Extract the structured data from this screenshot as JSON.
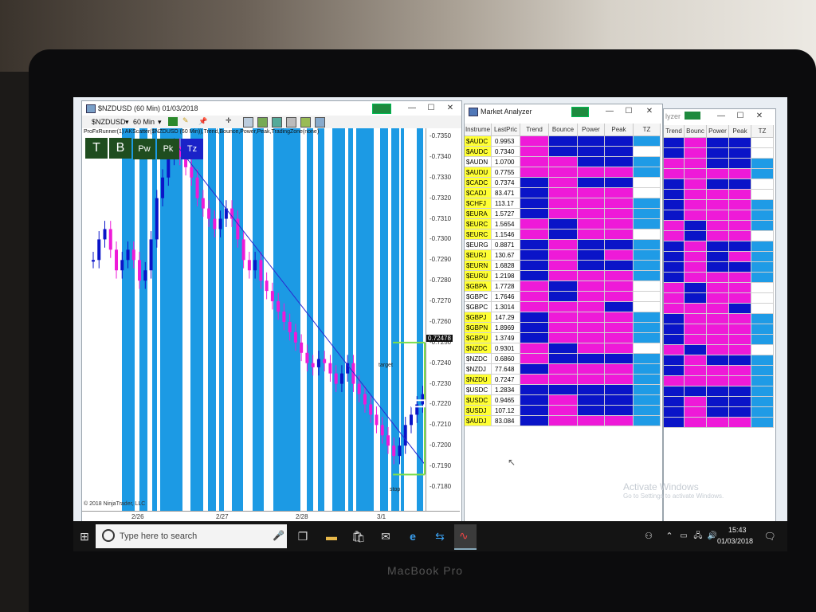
{
  "device": {
    "brand": "MacBook Pro"
  },
  "chart_window": {
    "title": "$NZDUSD (60 Min)  01/03/2018",
    "toolbar": {
      "instrument": "$NZDUSD",
      "interval": "60 Min"
    },
    "indicator_text": "ProFxRunner(1) AKScatter($NZDUSD (60 Min)),Trend,Bounce,Power,Peak,TradingZone(none)",
    "badges": [
      "T",
      "B",
      "Pw",
      "Pk",
      "Tz"
    ],
    "price_labels": [
      "0.7350",
      "0.7340",
      "0.7330",
      "0.7320",
      "0.7310",
      "0.7300",
      "0.7290",
      "0.7280",
      "0.7270",
      "0.7260",
      "0.7250",
      "0.7240",
      "0.7230",
      "0.7220",
      "0.7210",
      "0.7200",
      "0.7190",
      "0.7180"
    ],
    "current_price": "0.72478",
    "date_labels": [
      "2/26",
      "2/27",
      "2/28",
      "3/1"
    ],
    "target_label": "target",
    "stop_label": "stop",
    "copyright": "© 2018 NinjaTrader, LLC"
  },
  "market_analyzer": {
    "title": "Market Analyzer",
    "columns": [
      "Instrume",
      "LastPric",
      "Trend",
      "Bounce",
      "Power",
      "Peak",
      "TZ"
    ],
    "second_columns": [
      "Trend",
      "Bounc",
      "Power",
      "Peak",
      "TZ"
    ],
    "second_title_fragment": "lyzer",
    "rows": [
      {
        "name": "$AUDC",
        "price": "0.9953",
        "hl": true,
        "c": "MNNNL",
        "c2": "NMNNW"
      },
      {
        "name": "$AUDC",
        "price": "0.7340",
        "hl": true,
        "c": "MNNNW",
        "c2": "NMNNW"
      },
      {
        "name": "$AUDN",
        "price": "1.0700",
        "hl": false,
        "c": "MMNNL",
        "c2": "MMNNL"
      },
      {
        "name": "$AUDU",
        "price": "0.7755",
        "hl": true,
        "c": "MMMML",
        "c2": "MMMML"
      },
      {
        "name": "$CADC",
        "price": "0.7374",
        "hl": true,
        "c": "NMNNW",
        "c2": "NMNNW"
      },
      {
        "name": "$CADJ",
        "price": "83.471",
        "hl": true,
        "c": "NMMMW",
        "c2": "NMMMW"
      },
      {
        "name": "$CHFJ",
        "price": "113.17",
        "hl": true,
        "c": "NMMMC",
        "c2": "NMMMC"
      },
      {
        "name": "$EURA",
        "price": "1.5727",
        "hl": true,
        "c": "NMMML",
        "c2": "NMMML"
      },
      {
        "name": "$EURC",
        "price": "1.5654",
        "hl": true,
        "c": "MNMML",
        "c2": "MNMML"
      },
      {
        "name": "$EURC",
        "price": "1.1546",
        "hl": true,
        "c": "MNMMW",
        "c2": "MNMMW"
      },
      {
        "name": "$EURG",
        "price": "0.8871",
        "hl": false,
        "c": "NMNNL",
        "c2": "NMNNL"
      },
      {
        "name": "$EURJ",
        "price": "130.67",
        "hl": true,
        "c": "NMNML",
        "c2": "NMNML"
      },
      {
        "name": "$EURN",
        "price": "1.6828",
        "hl": true,
        "c": "NMNNL",
        "c2": "NMNNL"
      },
      {
        "name": "$EURU",
        "price": "1.2198",
        "hl": true,
        "c": "NMMML",
        "c2": "NMMML"
      },
      {
        "name": "$GBPA",
        "price": "1.7728",
        "hl": true,
        "c": "MNMMW",
        "c2": "MNMMW"
      },
      {
        "name": "$GBPC",
        "price": "1.7646",
        "hl": false,
        "c": "MNMMW",
        "c2": "MNMMW"
      },
      {
        "name": "$GBPC",
        "price": "1.3014",
        "hl": false,
        "c": "MMMNW",
        "c2": "MMMNW"
      },
      {
        "name": "$GBPJ",
        "price": "147.29",
        "hl": true,
        "c": "NMMML",
        "c2": "NMMML"
      },
      {
        "name": "$GBPN",
        "price": "1.8969",
        "hl": true,
        "c": "NMMML",
        "c2": "NMMML"
      },
      {
        "name": "$GBPU",
        "price": "1.3749",
        "hl": true,
        "c": "NMMML",
        "c2": "NMMML"
      },
      {
        "name": "$NZDC",
        "price": "0.9301",
        "hl": true,
        "c": "MNMMW",
        "c2": "MNMMW"
      },
      {
        "name": "$NZDC",
        "price": "0.6860",
        "hl": false,
        "c": "MNNNL",
        "c2": "NMNNL"
      },
      {
        "name": "$NZDJ",
        "price": "77.648",
        "hl": false,
        "c": "NMMML",
        "c2": "NMMML"
      },
      {
        "name": "$NZDU",
        "price": "0.7247",
        "hl": true,
        "c": "MMMML",
        "c2": "MMMML"
      },
      {
        "name": "$USDC",
        "price": "1.2834",
        "hl": false,
        "c": "NNNNL",
        "c2": "NNNNL"
      },
      {
        "name": "$USDC",
        "price": "0.9465",
        "hl": true,
        "c": "NMNNL",
        "c2": "NMNNL"
      },
      {
        "name": "$USDJ",
        "price": "107.12",
        "hl": true,
        "c": "NMNNL",
        "c2": "NMNNL"
      },
      {
        "name": "$AUDJ",
        "price": "83.084",
        "hl": true,
        "c": "NMMML",
        "c2": "NMMML"
      }
    ],
    "watermark_title": "Activate Windows",
    "watermark_sub": "Go to Settings to activate Windows."
  },
  "taskbar": {
    "search_placeholder": "Type here to search",
    "time": "15:43",
    "date": "01/03/2018"
  },
  "colors": {
    "blue": "#0a14c8",
    "magenta": "#ee1ad8",
    "light_blue": "#1f9be6",
    "white": "#ffffff",
    "yellow": "#ffff33",
    "cyan_band": "#1c9ae4"
  }
}
